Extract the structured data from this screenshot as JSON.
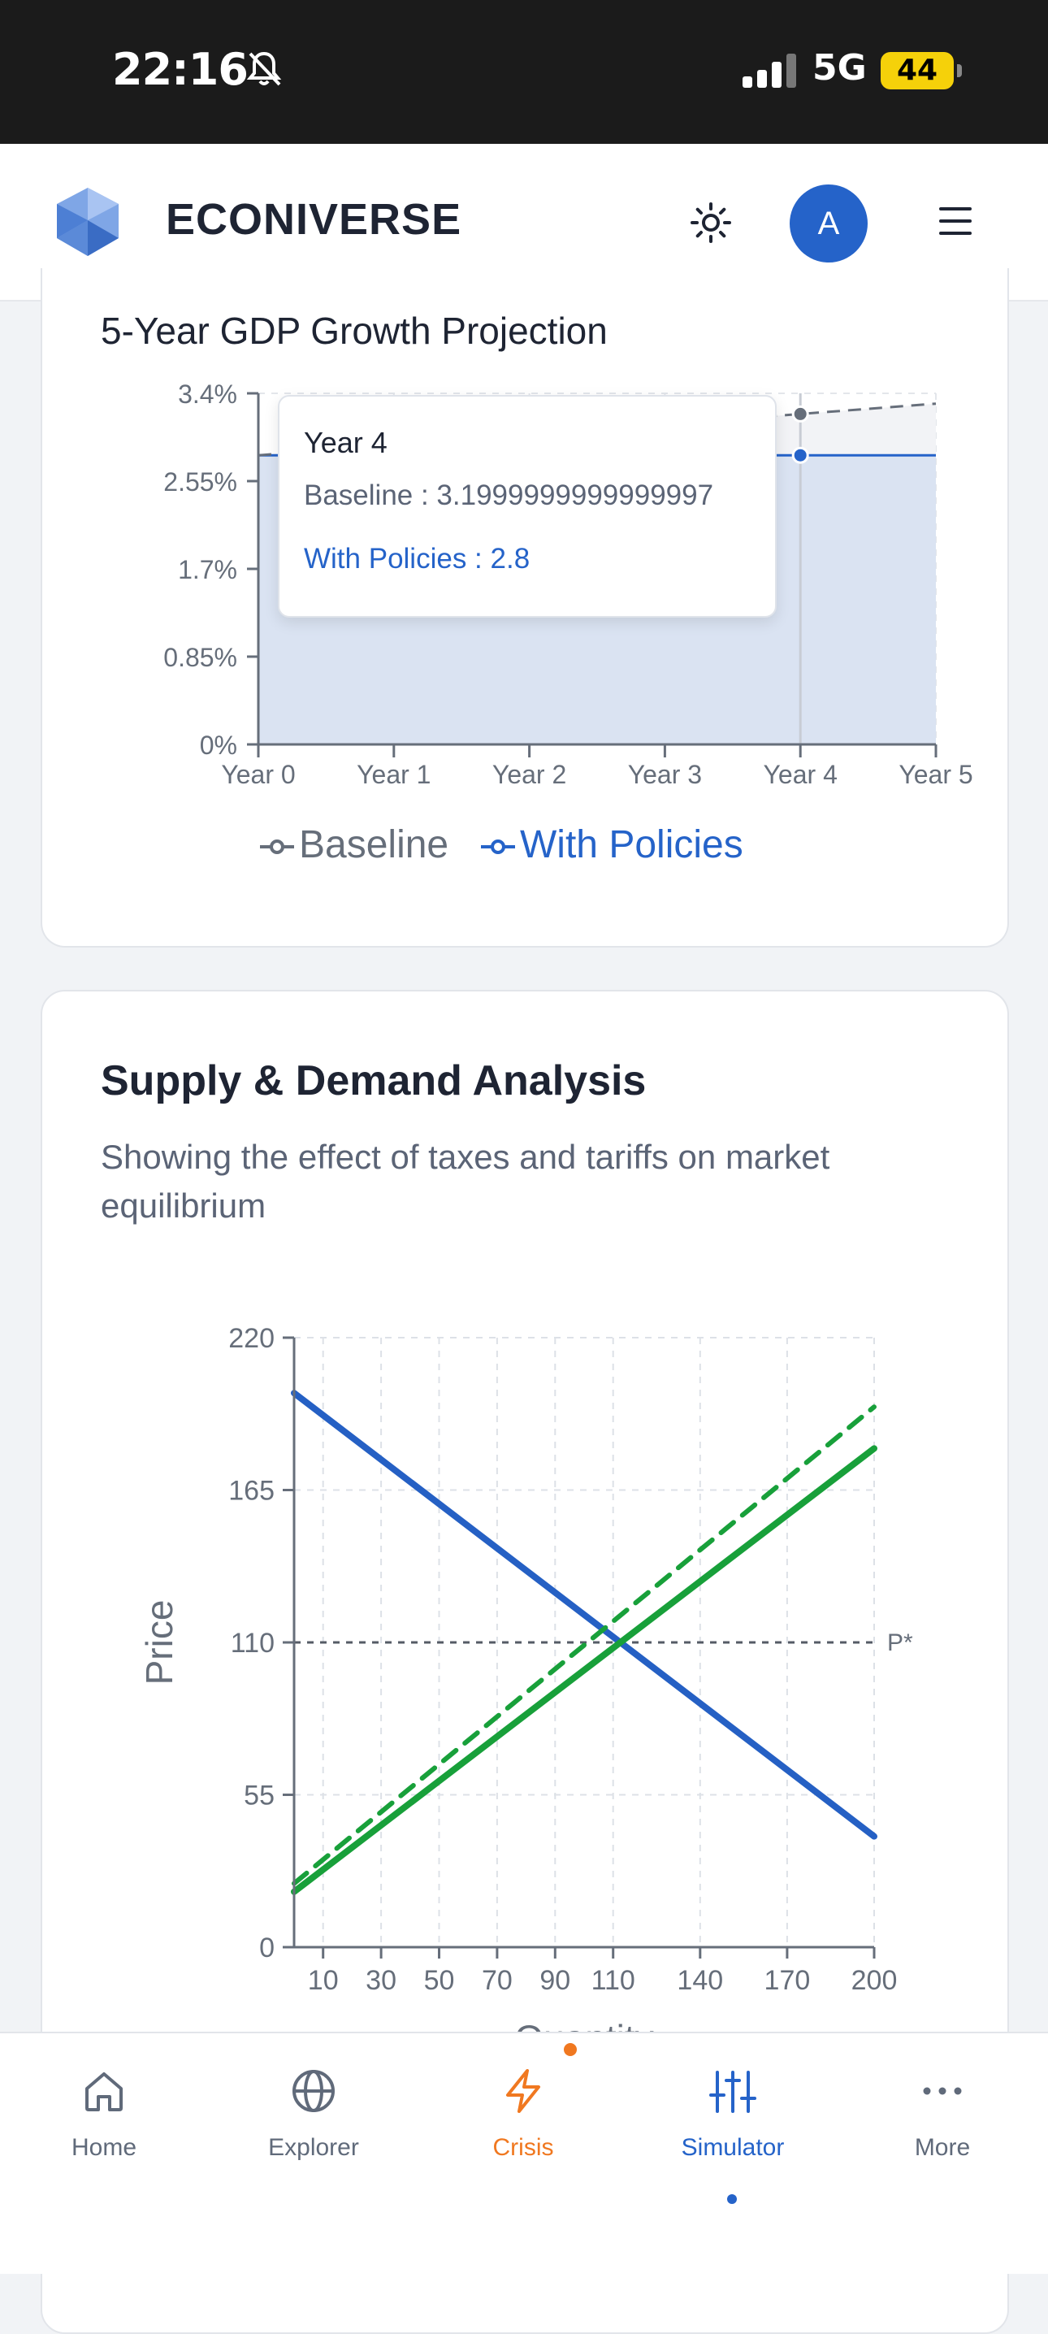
{
  "status_bar": {
    "time": "22:16",
    "network": "5G",
    "battery": "44"
  },
  "header": {
    "brand": "ECONIVERSE",
    "avatar_letter": "A"
  },
  "gdp_card": {
    "title": "5-Year GDP Growth Projection",
    "tooltip": {
      "title": "Year 4",
      "baseline_label": "Baseline : 3.1999999999999997",
      "policies_label": "With Policies : 2.8"
    },
    "legend": [
      "Baseline",
      "With Policies"
    ]
  },
  "supply_card": {
    "title": "Supply & Demand Analysis",
    "subtitle": "Showing the effect of taxes and tariffs on market equilibrium"
  },
  "chart_data": [
    {
      "type": "area",
      "title": "5-Year GDP Growth Projection",
      "categories": [
        "Year 0",
        "Year 1",
        "Year 2",
        "Year 3",
        "Year 4",
        "Year 5"
      ],
      "y_tick_labels": [
        "0%",
        "0.85%",
        "1.7%",
        "2.55%",
        "3.4%"
      ],
      "ylim": [
        0,
        3.4
      ],
      "series": [
        {
          "name": "Baseline",
          "values": [
            2.8,
            2.9,
            3.0,
            3.1,
            3.2,
            3.3
          ]
        },
        {
          "name": "With Policies",
          "values": [
            2.8,
            2.8,
            2.8,
            2.8,
            2.8,
            2.8
          ]
        }
      ],
      "legend_position": "bottom",
      "grid": true,
      "colors": {
        "Baseline": "#666e7a",
        "With Policies": "#2563c9"
      }
    },
    {
      "type": "line",
      "title": "Supply & Demand Analysis",
      "xlabel": "Quantity",
      "ylabel": "Price",
      "x_ticks": [
        10,
        30,
        50,
        70,
        90,
        110,
        140,
        170,
        200
      ],
      "y_ticks": [
        0,
        55,
        110,
        165,
        220
      ],
      "xlim": [
        0,
        200
      ],
      "ylim": [
        0,
        220
      ],
      "series": [
        {
          "values": [
            [
              0,
              200
            ],
            [
              200,
              40
            ]
          ],
          "color": "#2560c4",
          "style": "solid"
        },
        {
          "values": [
            [
              0,
              20
            ],
            [
              200,
              180
            ]
          ],
          "color": "#18a03a",
          "style": "solid"
        },
        {
          "values": [
            [
              0,
              23
            ],
            [
              200,
              195
            ]
          ],
          "color": "#18a03a",
          "style": "dashed"
        }
      ],
      "reference_line": {
        "y": 110,
        "label": "P*"
      },
      "grid": true
    }
  ],
  "tabs": [
    {
      "label": "Home",
      "icon": "home-icon"
    },
    {
      "label": "Explorer",
      "icon": "globe-icon"
    },
    {
      "label": "Crisis",
      "icon": "lightning-icon"
    },
    {
      "label": "Simulator",
      "icon": "sliders-icon"
    },
    {
      "label": "More",
      "icon": "more-dots-icon"
    }
  ],
  "colors": {
    "accent": "#2563c9",
    "crisis": "#f07820",
    "supply": "#18a03a"
  }
}
